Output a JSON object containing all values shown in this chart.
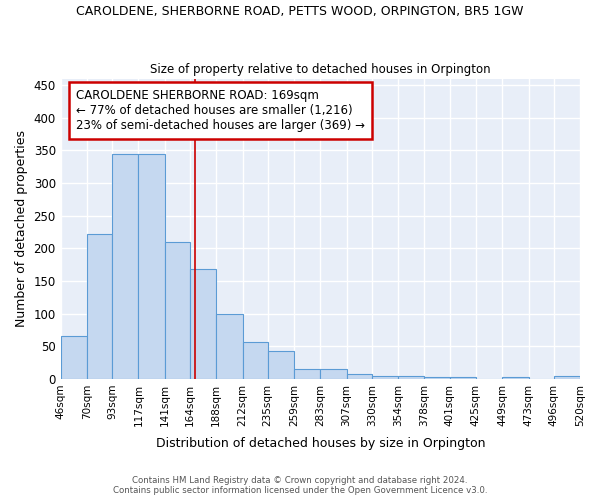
{
  "title": "CAROLDENE, SHERBORNE ROAD, PETTS WOOD, ORPINGTON, BR5 1GW",
  "subtitle": "Size of property relative to detached houses in Orpington",
  "xlabel": "Distribution of detached houses by size in Orpington",
  "ylabel": "Number of detached properties",
  "bin_edges": [
    46,
    70,
    93,
    117,
    141,
    164,
    188,
    212,
    235,
    259,
    283,
    307,
    330,
    354,
    378,
    401,
    425,
    449,
    473,
    496,
    520
  ],
  "bar_heights": [
    65,
    222,
    345,
    345,
    210,
    168,
    99,
    57,
    42,
    15,
    15,
    8,
    5,
    5,
    3,
    3,
    0,
    3,
    0,
    4
  ],
  "bar_color": "#c5d8f0",
  "bar_edge_color": "#5b9bd5",
  "property_size": 169,
  "annotation_title": "CAROLDENE SHERBORNE ROAD: 169sqm",
  "annotation_line1": "← 77% of detached houses are smaller (1,216)",
  "annotation_line2": "23% of semi-detached houses are larger (369) →",
  "annotation_box_edge_color": "#cc0000",
  "vline_color": "#cc0000",
  "ylim": [
    0,
    460
  ],
  "yticks": [
    0,
    50,
    100,
    150,
    200,
    250,
    300,
    350,
    400,
    450
  ],
  "plot_bg_color": "#e8eef8",
  "fig_bg_color": "#ffffff",
  "grid_color": "#ffffff",
  "footer_line1": "Contains HM Land Registry data © Crown copyright and database right 2024.",
  "footer_line2": "Contains public sector information licensed under the Open Government Licence v3.0."
}
